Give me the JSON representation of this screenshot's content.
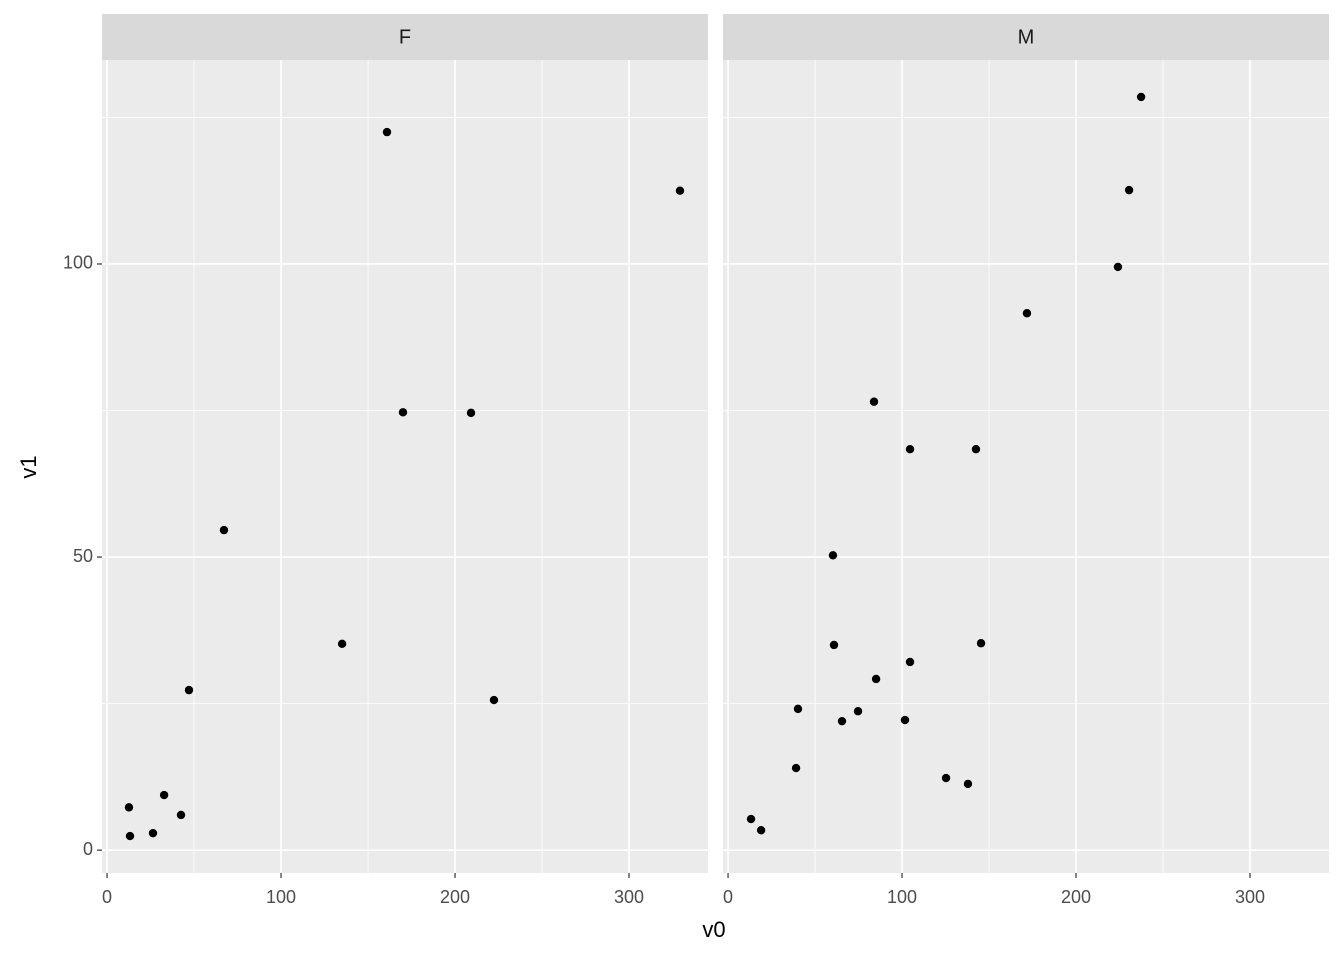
{
  "chart_data": {
    "type": "scatter",
    "x_label": "v0",
    "y_label": "v1",
    "color": "#000000",
    "xlim": [
      -2.9,
      345.4
    ],
    "ylim": [
      -3.9,
      134.8
    ],
    "xticks": [
      0,
      100,
      200,
      300
    ],
    "yticks": [
      0,
      50,
      100
    ],
    "x_minor_grid": [
      50,
      150,
      250
    ],
    "y_minor_grid": [
      25,
      75,
      125
    ],
    "facets": [
      {
        "title": "F",
        "x": [
          12.6,
          13.2,
          26.4,
          32.8,
          42.5,
          47.1,
          67.2,
          135.1,
          160.9,
          170.1,
          209.2,
          222.4,
          329.3
        ],
        "y": [
          7.3,
          2.4,
          2.9,
          9.4,
          6.0,
          27.3,
          54.6,
          35.2,
          122.5,
          74.7,
          74.6,
          25.6,
          112.5
        ]
      },
      {
        "title": "M",
        "x": [
          13.2,
          19.0,
          39.1,
          40.2,
          60.3,
          60.9,
          65.5,
          74.7,
          83.9,
          85.1,
          101.7,
          104.6,
          104.6,
          125.3,
          137.9,
          142.5,
          145.4,
          171.8,
          224.1,
          230.5,
          237.4
        ],
        "y": [
          5.3,
          3.4,
          14.0,
          24.1,
          50.3,
          35.0,
          22.0,
          23.7,
          76.5,
          29.2,
          22.2,
          68.4,
          32.1,
          12.3,
          11.3,
          68.4,
          35.3,
          91.6,
          99.5,
          112.6,
          128.5
        ]
      }
    ]
  }
}
